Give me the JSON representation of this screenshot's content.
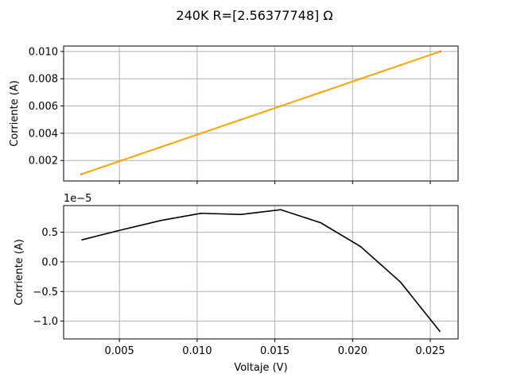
{
  "chart_data": {
    "type": "line",
    "title": "240K R=[2.56377748] Ω",
    "xlabel": "Voltaje (V)",
    "subplots": [
      {
        "ylabel": "Corriente (A)",
        "ylim": [
          0.0005,
          0.0104
        ],
        "yticks": [
          0.002,
          0.004,
          0.006,
          0.008,
          0.01
        ],
        "ytick_labels": [
          "0.002",
          "0.004",
          "0.006",
          "0.008",
          "0.010"
        ],
        "grid": true,
        "series": [
          {
            "style": "dashed-points",
            "color": "#d62728",
            "x": [
              0.00256,
              0.00513,
              0.00769,
              0.01026,
              0.01282,
              0.01538,
              0.01795,
              0.02051,
              0.02308,
              0.02564
            ],
            "y": [
              0.001,
              0.002,
              0.003,
              0.004,
              0.005,
              0.006,
              0.007,
              0.008,
              0.009,
              0.01
            ]
          },
          {
            "style": "line",
            "color": "#ffa500",
            "x": [
              0.00256,
              0.02564
            ],
            "y": [
              0.000996,
              0.009998
            ]
          }
        ]
      },
      {
        "ylabel": "Corriente (A)",
        "offset_label": "1e−5",
        "ylim": [
          -1.3,
          0.95
        ],
        "yticks": [
          -1.0,
          -0.5,
          0.0,
          0.5
        ],
        "ytick_labels": [
          "−1.0",
          "−0.5",
          "0.0",
          "0.5"
        ],
        "grid": true,
        "series": [
          {
            "style": "line",
            "color": "#000000",
            "x": [
              0.00256,
              0.00513,
              0.00769,
              0.01026,
              0.01282,
              0.01538,
              0.01795,
              0.02051,
              0.02308,
              0.02564
            ],
            "y": [
              0.37,
              0.54,
              0.7,
              0.82,
              0.8,
              0.88,
              0.66,
              0.26,
              -0.34,
              -1.18
            ]
          }
        ]
      }
    ],
    "xlim": [
      0.00141,
      0.02679
    ],
    "xticks": [
      0.005,
      0.01,
      0.015,
      0.02,
      0.025
    ],
    "xtick_labels": [
      "0.005",
      "0.010",
      "0.015",
      "0.020",
      "0.025"
    ]
  }
}
